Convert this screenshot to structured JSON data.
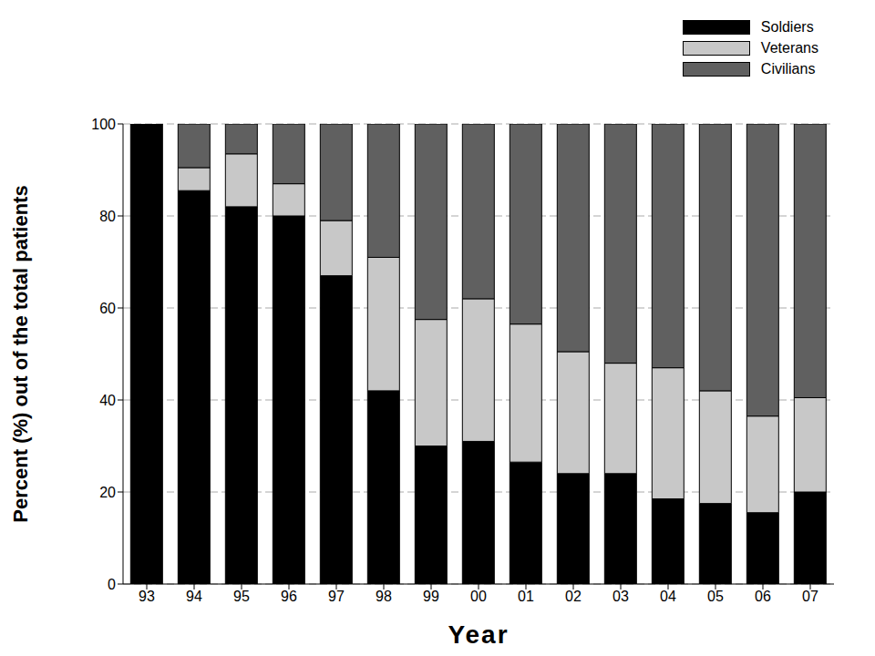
{
  "chart_data": {
    "type": "bar",
    "stacked": true,
    "x_label": "Year",
    "y_label": "Percent (%) out of the total patients",
    "categories": [
      "93",
      "94",
      "95",
      "96",
      "97",
      "98",
      "99",
      "00",
      "01",
      "02",
      "03",
      "04",
      "05",
      "06",
      "07"
    ],
    "series": [
      {
        "name": "Soldiers",
        "color": "#000000",
        "values": [
          100,
          85.5,
          82,
          80,
          67,
          42,
          30,
          31,
          26.5,
          24,
          24,
          18.5,
          17.5,
          15.5,
          20
        ]
      },
      {
        "name": "Veterans",
        "color": "#c8c8c8",
        "values": [
          0,
          5,
          11.5,
          7,
          12,
          29,
          27.5,
          31,
          30,
          26.5,
          24,
          28.5,
          24.5,
          21,
          20.5
        ]
      },
      {
        "name": "Civilians",
        "color": "#606060",
        "values": [
          0,
          9.5,
          6.5,
          13,
          21,
          29,
          42.5,
          38,
          43.5,
          49.5,
          52,
          53,
          58,
          63.5,
          59.5
        ]
      }
    ],
    "ylim": [
      0,
      100
    ],
    "yticks": [
      0,
      20,
      40,
      60,
      80,
      100
    ],
    "grid": true,
    "legend": "upper right"
  }
}
